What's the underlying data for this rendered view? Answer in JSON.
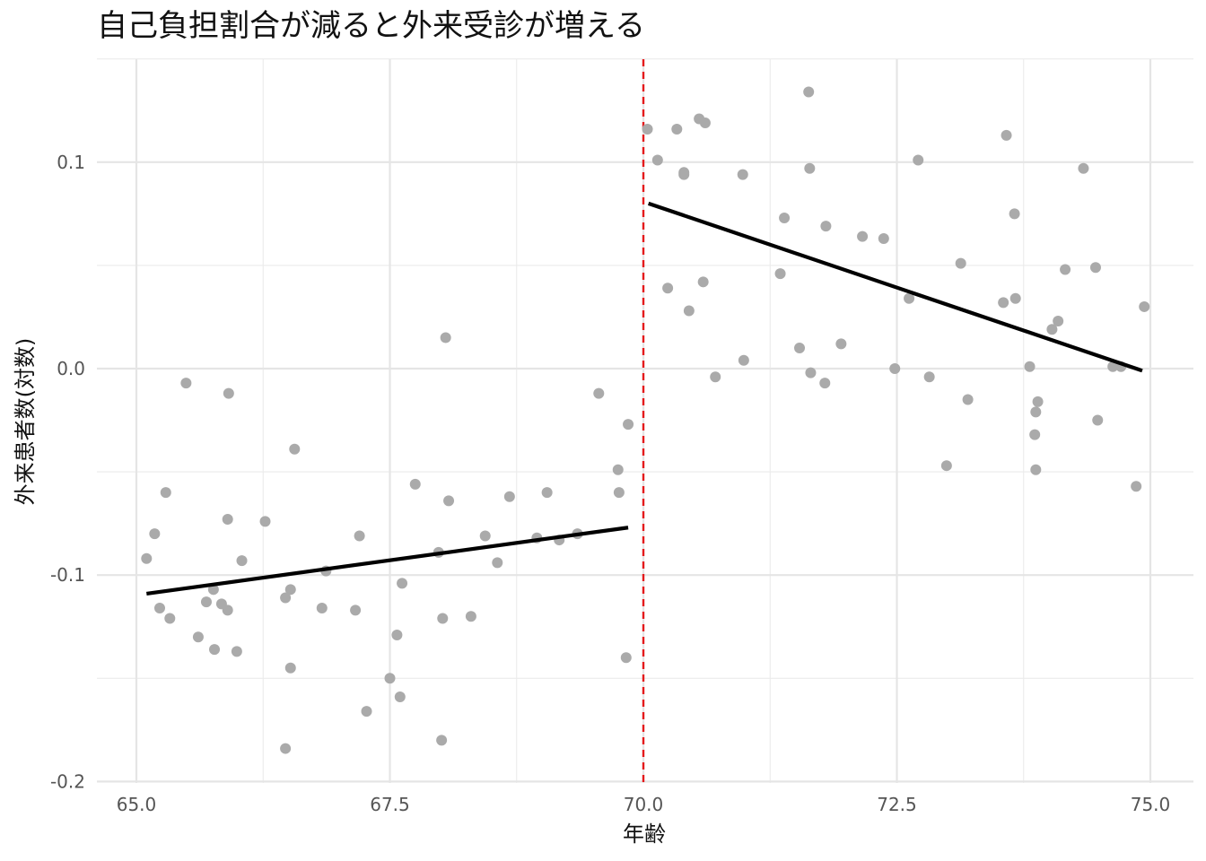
{
  "chart_data": {
    "type": "scatter",
    "title": "自己負担割合が減ると外来受診が増える",
    "xlabel": "年齢",
    "ylabel": "外来患者数(対数)",
    "xlim": [
      64.8,
      75.5
    ],
    "ylim": [
      -0.2,
      0.15
    ],
    "x_ticks": [
      65.0,
      67.5,
      70.0,
      72.5,
      75.0
    ],
    "x_tick_labels": [
      "65.0",
      "67.5",
      "70.0",
      "72.5",
      "75.0"
    ],
    "y_ticks": [
      -0.2,
      -0.1,
      0.0,
      0.1
    ],
    "y_tick_labels": [
      "-0.2",
      "-0.1",
      "0.0",
      "0.1"
    ],
    "grid": true,
    "threshold": {
      "x": 70.0,
      "color": "#e41a1c",
      "style": "dashed"
    },
    "point_color": "#aaaaaa",
    "line_color": "#000000",
    "fit_lines": [
      {
        "x": [
          65.1,
          69.85
        ],
        "y": [
          -0.109,
          -0.077
        ]
      },
      {
        "x": [
          70.05,
          74.92
        ],
        "y": [
          0.08,
          -0.001
        ]
      }
    ],
    "points": [
      {
        "x": 65.1,
        "y": -0.092
      },
      {
        "x": 65.18,
        "y": -0.08
      },
      {
        "x": 65.23,
        "y": -0.116
      },
      {
        "x": 65.29,
        "y": -0.06
      },
      {
        "x": 65.33,
        "y": -0.121
      },
      {
        "x": 65.49,
        "y": -0.007
      },
      {
        "x": 65.61,
        "y": -0.13
      },
      {
        "x": 65.69,
        "y": -0.113
      },
      {
        "x": 65.76,
        "y": -0.107
      },
      {
        "x": 65.77,
        "y": -0.136
      },
      {
        "x": 65.84,
        "y": -0.114
      },
      {
        "x": 65.9,
        "y": -0.073
      },
      {
        "x": 65.9,
        "y": -0.117
      },
      {
        "x": 65.91,
        "y": -0.012
      },
      {
        "x": 65.99,
        "y": -0.137
      },
      {
        "x": 66.04,
        "y": -0.093
      },
      {
        "x": 66.27,
        "y": -0.074
      },
      {
        "x": 66.47,
        "y": -0.111
      },
      {
        "x": 66.47,
        "y": -0.184
      },
      {
        "x": 66.52,
        "y": -0.107
      },
      {
        "x": 66.52,
        "y": -0.145
      },
      {
        "x": 66.56,
        "y": -0.039
      },
      {
        "x": 66.83,
        "y": -0.116
      },
      {
        "x": 66.87,
        "y": -0.098
      },
      {
        "x": 67.16,
        "y": -0.117
      },
      {
        "x": 67.2,
        "y": -0.081
      },
      {
        "x": 67.27,
        "y": -0.166
      },
      {
        "x": 67.5,
        "y": -0.15
      },
      {
        "x": 67.57,
        "y": -0.129
      },
      {
        "x": 67.6,
        "y": -0.159
      },
      {
        "x": 67.62,
        "y": -0.104
      },
      {
        "x": 67.75,
        "y": -0.056
      },
      {
        "x": 67.98,
        "y": -0.089
      },
      {
        "x": 68.01,
        "y": -0.18
      },
      {
        "x": 68.02,
        "y": -0.121
      },
      {
        "x": 68.05,
        "y": 0.015
      },
      {
        "x": 68.08,
        "y": -0.064
      },
      {
        "x": 68.3,
        "y": -0.12
      },
      {
        "x": 68.44,
        "y": -0.081
      },
      {
        "x": 68.56,
        "y": -0.094
      },
      {
        "x": 68.68,
        "y": -0.062
      },
      {
        "x": 68.95,
        "y": -0.082
      },
      {
        "x": 69.05,
        "y": -0.06
      },
      {
        "x": 69.17,
        "y": -0.083
      },
      {
        "x": 69.35,
        "y": -0.08
      },
      {
        "x": 69.56,
        "y": -0.012
      },
      {
        "x": 69.75,
        "y": -0.049
      },
      {
        "x": 69.76,
        "y": -0.06
      },
      {
        "x": 69.83,
        "y": -0.14
      },
      {
        "x": 69.85,
        "y": -0.027
      },
      {
        "x": 70.04,
        "y": 0.116
      },
      {
        "x": 70.14,
        "y": 0.101
      },
      {
        "x": 70.24,
        "y": 0.039
      },
      {
        "x": 70.33,
        "y": 0.116
      },
      {
        "x": 70.4,
        "y": 0.095
      },
      {
        "x": 70.4,
        "y": 0.094
      },
      {
        "x": 70.45,
        "y": 0.028
      },
      {
        "x": 70.55,
        "y": 0.121
      },
      {
        "x": 70.59,
        "y": 0.042
      },
      {
        "x": 70.61,
        "y": 0.119
      },
      {
        "x": 70.71,
        "y": -0.004
      },
      {
        "x": 70.98,
        "y": 0.094
      },
      {
        "x": 70.99,
        "y": 0.004
      },
      {
        "x": 71.35,
        "y": 0.046
      },
      {
        "x": 71.39,
        "y": 0.073
      },
      {
        "x": 71.54,
        "y": 0.01
      },
      {
        "x": 71.63,
        "y": 0.134
      },
      {
        "x": 71.64,
        "y": 0.097
      },
      {
        "x": 71.65,
        "y": -0.002
      },
      {
        "x": 71.79,
        "y": -0.007
      },
      {
        "x": 71.8,
        "y": 0.069
      },
      {
        "x": 71.95,
        "y": 0.012
      },
      {
        "x": 72.16,
        "y": 0.064
      },
      {
        "x": 72.37,
        "y": 0.063
      },
      {
        "x": 72.48,
        "y": 0.0
      },
      {
        "x": 72.62,
        "y": 0.034
      },
      {
        "x": 72.71,
        "y": 0.101
      },
      {
        "x": 72.82,
        "y": -0.004
      },
      {
        "x": 72.99,
        "y": -0.047
      },
      {
        "x": 73.13,
        "y": 0.051
      },
      {
        "x": 73.2,
        "y": -0.015
      },
      {
        "x": 73.55,
        "y": 0.032
      },
      {
        "x": 73.58,
        "y": 0.113
      },
      {
        "x": 73.66,
        "y": 0.075
      },
      {
        "x": 73.67,
        "y": 0.034
      },
      {
        "x": 73.81,
        "y": 0.001
      },
      {
        "x": 73.86,
        "y": -0.032
      },
      {
        "x": 73.87,
        "y": -0.021
      },
      {
        "x": 73.87,
        "y": -0.049
      },
      {
        "x": 73.89,
        "y": -0.016
      },
      {
        "x": 74.03,
        "y": 0.019
      },
      {
        "x": 74.09,
        "y": 0.023
      },
      {
        "x": 74.16,
        "y": 0.048
      },
      {
        "x": 74.34,
        "y": 0.097
      },
      {
        "x": 74.46,
        "y": 0.049
      },
      {
        "x": 74.48,
        "y": -0.025
      },
      {
        "x": 74.63,
        "y": 0.001
      },
      {
        "x": 74.71,
        "y": 0.001
      },
      {
        "x": 74.86,
        "y": -0.057
      },
      {
        "x": 74.94,
        "y": 0.03
      }
    ]
  }
}
